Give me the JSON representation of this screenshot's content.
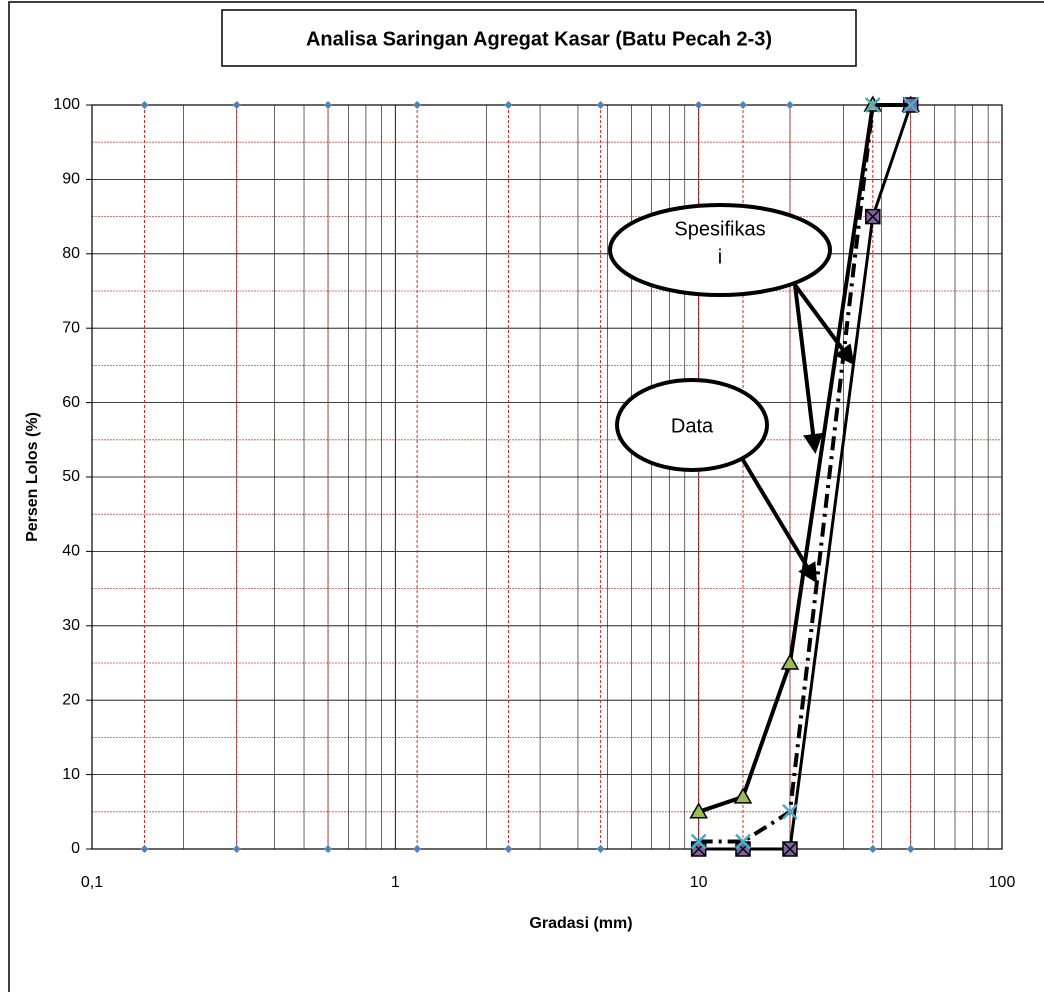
{
  "chart_data": {
    "type": "line",
    "title": "Analisa Saringan Agregat Kasar (Batu Pecah 2-3)",
    "x_label": "Gradasi (mm)",
    "y_label": "Persen Lolos (%)",
    "log_x": true,
    "grid": true,
    "xlim": [
      0.1,
      100
    ],
    "ylim": [
      0,
      100
    ],
    "xticks": [
      {
        "value": 0.1,
        "label": "0,1"
      },
      1,
      10,
      100
    ],
    "yticks": [
      0,
      10,
      20,
      30,
      40,
      50,
      60,
      70,
      80,
      90,
      100
    ],
    "sieves": [
      0.149,
      0.3,
      0.6,
      1.18,
      2.36,
      4.75,
      10,
      14,
      20,
      37.5,
      50
    ],
    "sieve_marker_levels": [
      100,
      0
    ],
    "sieve_color": "#4f81bd",
    "series": [
      {
        "x": [
          10,
          14,
          20,
          37.5,
          50
        ],
        "values": [
          5,
          7,
          25,
          100,
          100
        ],
        "color": "#9bbb59",
        "marker": "triangle",
        "dash": "solid"
      },
      {
        "x": [
          10,
          14,
          20,
          37.5,
          50
        ],
        "values": [
          0,
          0,
          0,
          85,
          100
        ],
        "color": "#8064a2",
        "marker": "square-x",
        "dash": "solid"
      },
      {
        "x": [
          10,
          14,
          20,
          37.5,
          50
        ],
        "values": [
          1,
          1,
          5,
          100,
          100
        ],
        "color": "#4bacc6",
        "marker": "x",
        "dash": "dashdot"
      }
    ],
    "annotations": [
      "Spesifikas",
      "i",
      "Data"
    ]
  }
}
